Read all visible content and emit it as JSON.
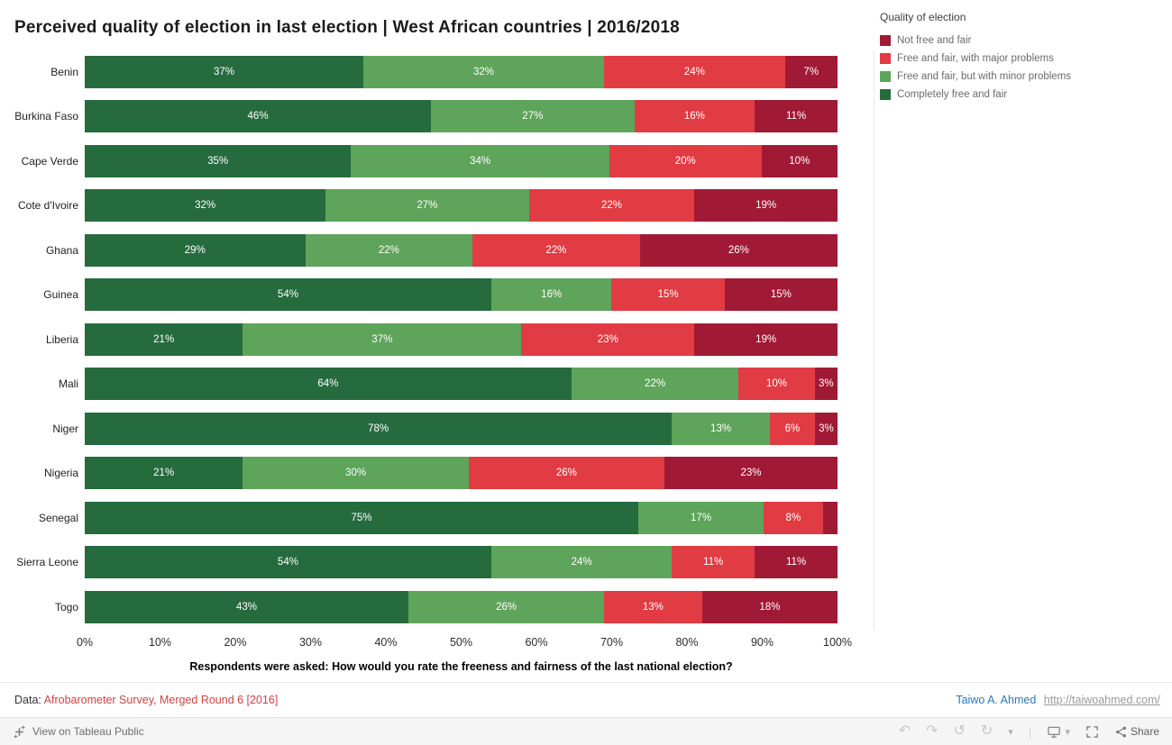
{
  "title": "Perceived quality of election in last election | West African countries | 2016/2018",
  "legend": {
    "title": "Quality of election",
    "items": [
      {
        "label": "Not free and fair",
        "color": "#a11a35"
      },
      {
        "label": "Free and fair, with major problems",
        "color": "#e13b43"
      },
      {
        "label": "Free and fair, but with minor problems",
        "color": "#5ea45a"
      },
      {
        "label": "Completely free and fair",
        "color": "#266b3e"
      }
    ]
  },
  "chart_data": {
    "type": "bar",
    "stacked": true,
    "orientation": "horizontal",
    "title": "Perceived quality of election in last election | West African countries | 2016/2018",
    "caption": "Respondents were asked: How would you rate the freeness and fairness of the last national election?",
    "xlim": [
      0,
      100
    ],
    "x_ticks": [
      "0%",
      "10%",
      "20%",
      "30%",
      "40%",
      "50%",
      "60%",
      "70%",
      "80%",
      "90%",
      "100%"
    ],
    "label_min_visible": 3,
    "legend_position": "top-right",
    "categories": [
      "Benin",
      "Burkina Faso",
      "Cape Verde",
      "Cote d'Ivoire",
      "Ghana",
      "Guinea",
      "Liberia",
      "Mali",
      "Niger",
      "Nigeria",
      "Senegal",
      "Sierra Leone",
      "Togo"
    ],
    "series": [
      {
        "name": "Completely free and fair",
        "color": "#266b3e",
        "values": [
          37,
          46,
          35,
          32,
          29,
          54,
          21,
          64,
          78,
          21,
          75,
          54,
          43
        ]
      },
      {
        "name": "Free and fair, but with minor problems",
        "color": "#5ea45a",
        "values": [
          32,
          27,
          34,
          27,
          22,
          16,
          37,
          22,
          13,
          30,
          17,
          24,
          26
        ]
      },
      {
        "name": "Free and fair, with major problems",
        "color": "#e13b43",
        "values": [
          24,
          16,
          20,
          22,
          22,
          15,
          23,
          10,
          6,
          26,
          8,
          11,
          13
        ]
      },
      {
        "name": "Not free and fair",
        "color": "#a11a35",
        "values": [
          7,
          11,
          10,
          19,
          26,
          15,
          19,
          3,
          3,
          23,
          2,
          11,
          18
        ]
      }
    ]
  },
  "footer": {
    "data_prefix": "Data: ",
    "data_source": "Afrobarometer Survey, Merged Round 6 [2016]",
    "author": "Taiwo A. Ahmed",
    "author_url": "http://taiwoahmed.com/"
  },
  "toolbar": {
    "view_label": "View on Tableau Public",
    "share_label": "Share",
    "icons": {
      "undo": "↶",
      "redo": "↷",
      "revert": "↺",
      "refresh": "↻",
      "caret": "▾",
      "separator": "|"
    }
  }
}
